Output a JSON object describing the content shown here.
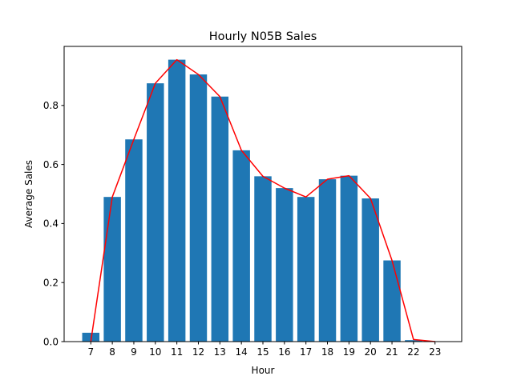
{
  "chart_data": {
    "type": "bar",
    "title": "Hourly N05B Sales",
    "xlabel": "Hour",
    "ylabel": "Average Sales",
    "categories": [
      "7",
      "8",
      "9",
      "10",
      "11",
      "12",
      "13",
      "14",
      "15",
      "16",
      "17",
      "18",
      "19",
      "20",
      "21",
      "22",
      "23"
    ],
    "series": [
      {
        "kind": "bar",
        "color": "#1f77b4",
        "values": [
          0.03,
          0.49,
          0.685,
          0.875,
          0.955,
          0.905,
          0.83,
          0.648,
          0.56,
          0.52,
          0.49,
          0.55,
          0.562,
          0.485,
          0.275,
          0.005,
          0.0
        ]
      },
      {
        "kind": "line",
        "color": "#ff0000",
        "values": [
          0.0,
          0.49,
          0.685,
          0.875,
          0.955,
          0.905,
          0.83,
          0.648,
          0.56,
          0.52,
          0.49,
          0.55,
          0.562,
          0.485,
          0.275,
          0.007,
          0.0
        ]
      }
    ],
    "yticks": [
      0.0,
      0.2,
      0.4,
      0.6,
      0.8
    ],
    "ytick_labels": [
      "0.0",
      "0.2",
      "0.4",
      "0.6",
      "0.8"
    ],
    "ylim": [
      0,
      1.0
    ],
    "grid": false,
    "legend": "none"
  }
}
